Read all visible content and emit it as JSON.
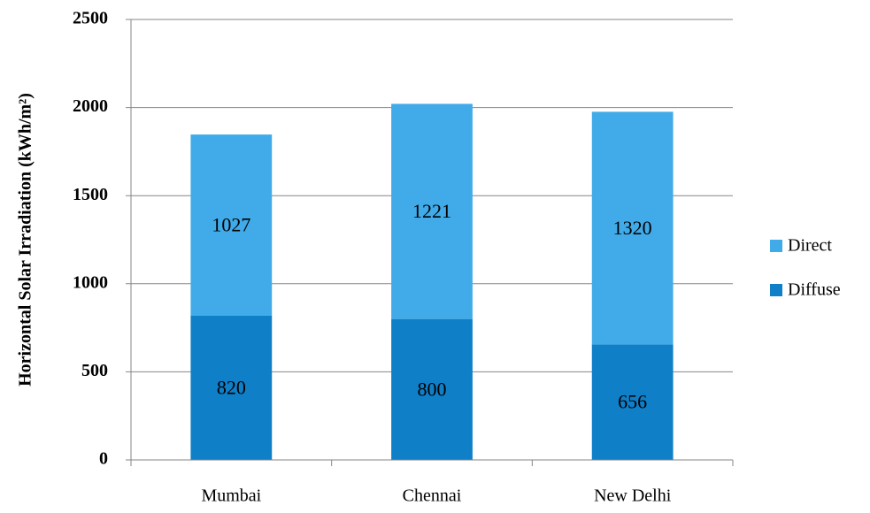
{
  "chart_data": {
    "type": "stacked_bar",
    "y_axis_label": "Horizontal Solar Irradiation (kWh/m²)",
    "categories": [
      "Mumbai",
      "Chennai",
      "New Delhi"
    ],
    "series": [
      {
        "name": "Diffuse",
        "color": "#0f7fc8",
        "values": [
          820,
          800,
          656
        ]
      },
      {
        "name": "Direct",
        "color": "#41abe9",
        "values": [
          1027,
          1221,
          1320
        ]
      }
    ],
    "ylim": [
      0,
      2500
    ],
    "yticks": [
      0,
      500,
      1000,
      1500,
      2000,
      2500
    ],
    "grid": true,
    "legend": "right"
  }
}
